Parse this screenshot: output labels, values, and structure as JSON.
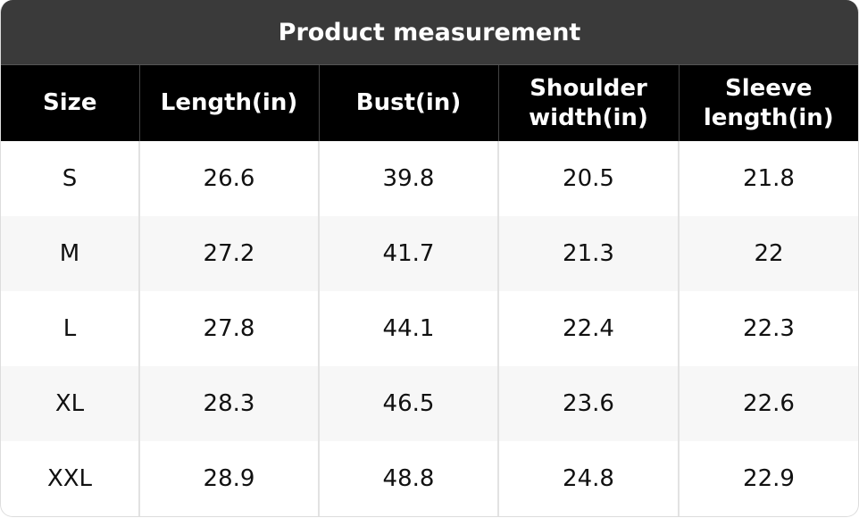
{
  "title": "Product measurement",
  "table": {
    "header": [
      "Size",
      "Length(in)",
      "Bust(in)",
      "Shoulder width(in)",
      "Sleeve length(in)"
    ],
    "rows": [
      [
        "S",
        26.6,
        39.8,
        20.5,
        21.8
      ],
      [
        "M",
        27.2,
        41.7,
        21.3,
        22
      ],
      [
        "L",
        27.8,
        44.1,
        22.4,
        22.3
      ],
      [
        "XL",
        28.3,
        46.5,
        23.6,
        22.6
      ],
      [
        "XXL",
        28.9,
        48.8,
        24.8,
        22.9
      ]
    ]
  }
}
